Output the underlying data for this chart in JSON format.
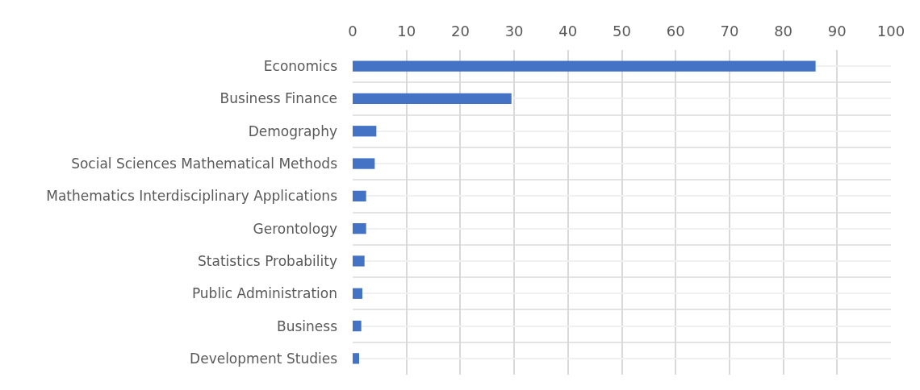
{
  "chart_data": {
    "type": "bar",
    "orientation": "horizontal",
    "categories": [
      "Economics",
      "Business Finance",
      "Demography",
      "Social Sciences Mathematical Methods",
      "Mathematics Interdisciplinary Applications",
      "Gerontology",
      "Statistics Probability",
      "Public Administration",
      "Business",
      "Development Studies"
    ],
    "values": [
      86,
      29.5,
      4.4,
      4.1,
      2.5,
      2.5,
      2.2,
      1.8,
      1.6,
      1.2
    ],
    "color": "#4472c4",
    "xlim": [
      0,
      100
    ],
    "xticks": [
      0,
      10,
      20,
      30,
      40,
      50,
      60,
      70,
      80,
      90,
      100
    ],
    "grid": true
  }
}
